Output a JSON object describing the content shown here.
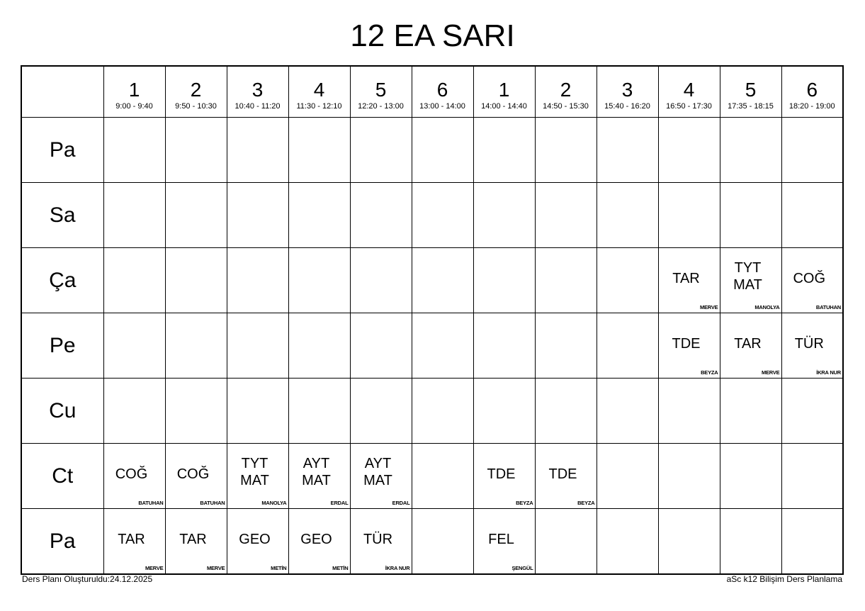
{
  "title": "12 EA SARI",
  "periods": [
    {
      "num": "1",
      "time": "9:00 - 9:40"
    },
    {
      "num": "2",
      "time": "9:50 - 10:30"
    },
    {
      "num": "3",
      "time": "10:40 - 11:20"
    },
    {
      "num": "4",
      "time": "11:30 - 12:10"
    },
    {
      "num": "5",
      "time": "12:20 - 13:00"
    },
    {
      "num": "6",
      "time": "13:00 - 14:00"
    },
    {
      "num": "1",
      "time": "14:00 - 14:40"
    },
    {
      "num": "2",
      "time": "14:50 - 15:30"
    },
    {
      "num": "3",
      "time": "15:40 - 16:20"
    },
    {
      "num": "4",
      "time": "16:50 - 17:30"
    },
    {
      "num": "5",
      "time": "17:35 - 18:15"
    },
    {
      "num": "6",
      "time": "18:20 - 19:00"
    }
  ],
  "days": [
    {
      "name": "Pa",
      "cells": [
        null,
        null,
        null,
        null,
        null,
        null,
        null,
        null,
        null,
        null,
        null,
        null
      ]
    },
    {
      "name": "Sa",
      "cells": [
        null,
        null,
        null,
        null,
        null,
        null,
        null,
        null,
        null,
        null,
        null,
        null
      ]
    },
    {
      "name": "Ça",
      "cells": [
        null,
        null,
        null,
        null,
        null,
        null,
        null,
        null,
        null,
        {
          "subject": "TAR",
          "teacher": "MERVE"
        },
        {
          "subject": "TYT\nMAT",
          "teacher": "MANOLYA"
        },
        {
          "subject": "COĞ",
          "teacher": "BATUHAN"
        }
      ]
    },
    {
      "name": "Pe",
      "cells": [
        null,
        null,
        null,
        null,
        null,
        null,
        null,
        null,
        null,
        {
          "subject": "TDE",
          "teacher": "BEYZA"
        },
        {
          "subject": "TAR",
          "teacher": "MERVE"
        },
        {
          "subject": "TÜR",
          "teacher": "İKRA NUR"
        }
      ]
    },
    {
      "name": "Cu",
      "cells": [
        null,
        null,
        null,
        null,
        null,
        null,
        null,
        null,
        null,
        null,
        null,
        null
      ]
    },
    {
      "name": "Ct",
      "cells": [
        {
          "subject": "COĞ",
          "teacher": "BATUHAN"
        },
        {
          "subject": "COĞ",
          "teacher": "BATUHAN"
        },
        {
          "subject": "TYT\nMAT",
          "teacher": "MANOLYA"
        },
        {
          "subject": "AYT\nMAT",
          "teacher": "ERDAL"
        },
        {
          "subject": "AYT\nMAT",
          "teacher": "ERDAL"
        },
        null,
        {
          "subject": "TDE",
          "teacher": "BEYZA"
        },
        {
          "subject": "TDE",
          "teacher": "BEYZA"
        },
        null,
        null,
        null,
        null
      ]
    },
    {
      "name": "Pa",
      "cells": [
        {
          "subject": "TAR",
          "teacher": "MERVE"
        },
        {
          "subject": "TAR",
          "teacher": "MERVE"
        },
        {
          "subject": "GEO",
          "teacher": "METİN"
        },
        {
          "subject": "GEO",
          "teacher": "METİN"
        },
        {
          "subject": "TÜR",
          "teacher": "İKRA NUR"
        },
        null,
        {
          "subject": "FEL",
          "teacher": "ŞENGÜL"
        },
        null,
        null,
        null,
        null,
        null
      ]
    }
  ],
  "footer": {
    "left": "Ders Planı Oluşturuldu:24.12.2025",
    "right": "aSc k12 Bilişim Ders Planlama"
  }
}
